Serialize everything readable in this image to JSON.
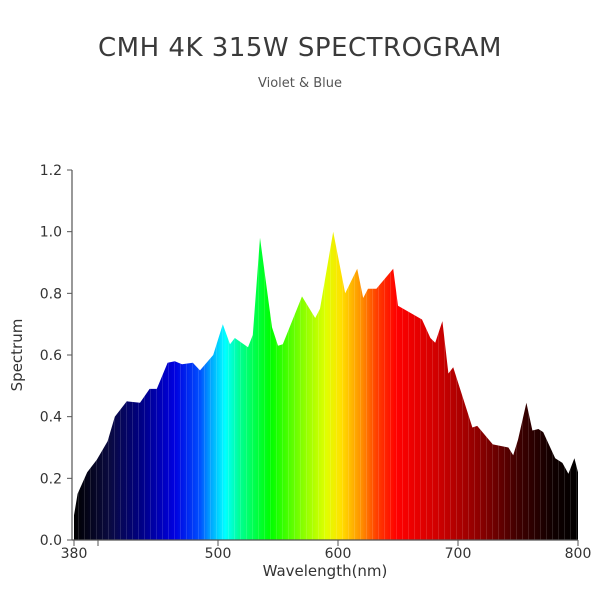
{
  "chart_data": {
    "type": "area",
    "title": "CMH 4K 315W SPECTROGRAM",
    "subtitle": "Violet & Blue",
    "xlabel": "Wavelength(nm)",
    "ylabel": "Spectrum",
    "xlim": [
      380,
      800
    ],
    "ylim": [
      0,
      1.2
    ],
    "x_ticks": [
      380,
      400,
      500,
      600,
      700,
      800
    ],
    "x_tick_labels": [
      "380",
      "",
      "500",
      "600",
      "700",
      "800"
    ],
    "y_ticks": [
      0,
      0.2,
      0.4,
      0.6,
      0.8,
      1.0,
      1.2
    ],
    "y_tick_labels": [
      "0.0",
      "0.2",
      "0.4",
      "0.6",
      "0.8",
      "1.0",
      "1.2"
    ],
    "grid": false,
    "fill": "visible-spectrum color gradient",
    "x": [
      380,
      383,
      391,
      399,
      408,
      414,
      424,
      435,
      443,
      449,
      458,
      464,
      470,
      479,
      485,
      496,
      504,
      510,
      514,
      525,
      529,
      535,
      545,
      550,
      554,
      570,
      581,
      585,
      596,
      606,
      616,
      621,
      625,
      632,
      646,
      650,
      670,
      677,
      681,
      687,
      692,
      696,
      712,
      716,
      729,
      742,
      746,
      750,
      757,
      762,
      767,
      771,
      781,
      787,
      792,
      797,
      800
    ],
    "y": [
      0.08,
      0.15,
      0.22,
      0.26,
      0.32,
      0.4,
      0.45,
      0.445,
      0.49,
      0.49,
      0.575,
      0.58,
      0.57,
      0.575,
      0.55,
      0.6,
      0.7,
      0.635,
      0.655,
      0.625,
      0.665,
      0.98,
      0.69,
      0.63,
      0.635,
      0.79,
      0.72,
      0.75,
      1.0,
      0.8,
      0.88,
      0.785,
      0.815,
      0.815,
      0.88,
      0.76,
      0.715,
      0.655,
      0.64,
      0.71,
      0.54,
      0.56,
      0.365,
      0.37,
      0.31,
      0.3,
      0.275,
      0.325,
      0.445,
      0.355,
      0.36,
      0.35,
      0.265,
      0.25,
      0.215,
      0.265,
      0.22
    ]
  }
}
